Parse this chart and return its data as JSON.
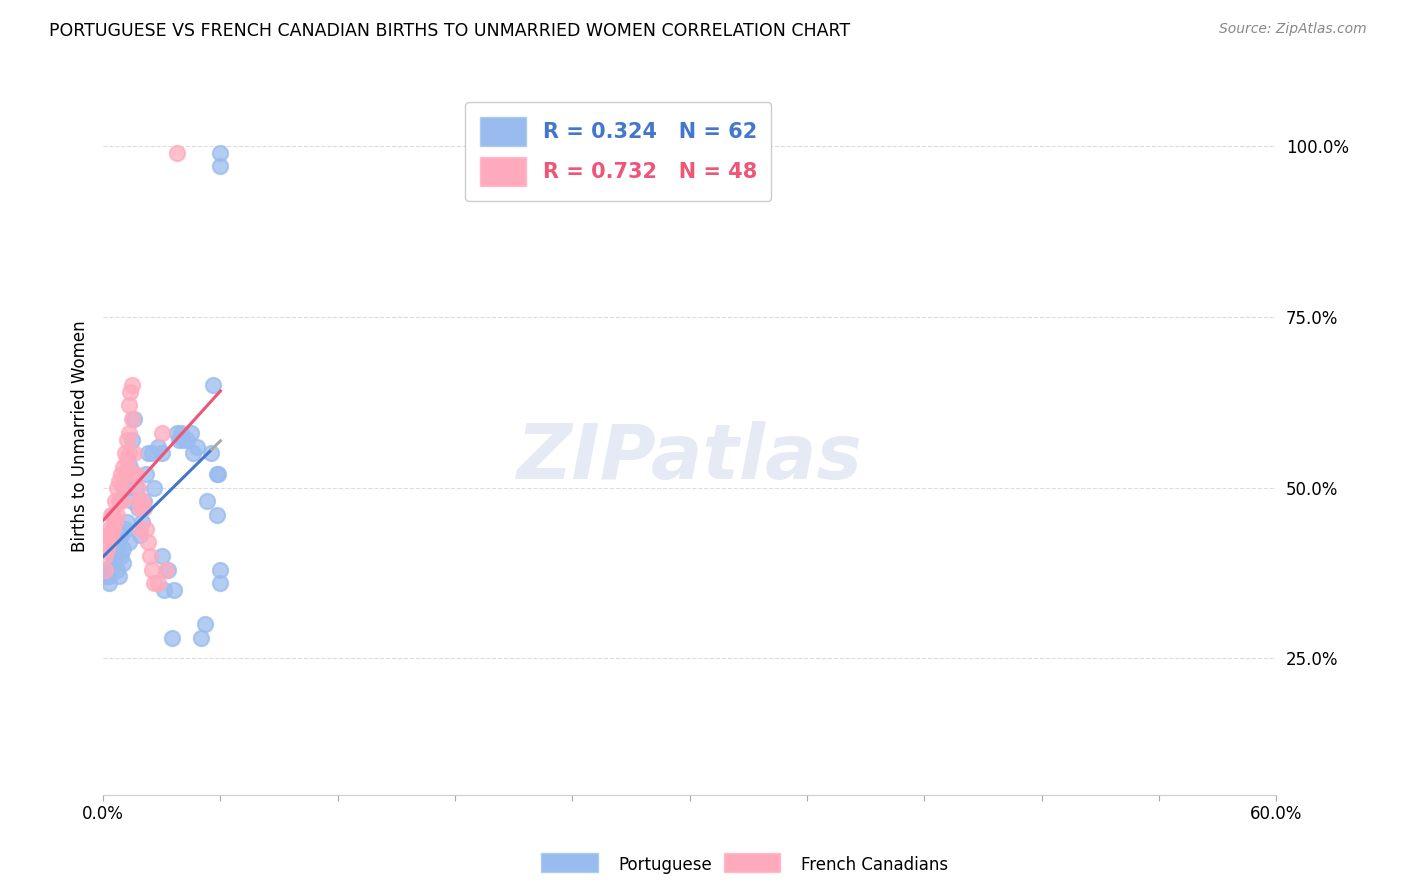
{
  "title": "PORTUGUESE VS FRENCH CANADIAN BIRTHS TO UNMARRIED WOMEN CORRELATION CHART",
  "source": "Source: ZipAtlas.com",
  "ylabel": "Births to Unmarried Women",
  "legend_R1": "R = 0.324",
  "legend_N1": "N = 62",
  "legend_R2": "R = 0.732",
  "legend_N2": "N = 48",
  "legend_label1": "Portuguese",
  "legend_label2": "French Canadians",
  "blue_scatter_color": "#99BBEE",
  "pink_scatter_color": "#FFAABC",
  "blue_line_color": "#4477CC",
  "pink_line_color": "#EE5577",
  "dashed_line_color": "#AAAAAA",
  "watermark": "ZIPatlas",
  "background_color": "#FFFFFF",
  "grid_color": "#DDDDDD",
  "portuguese_x": [
    0.001,
    0.002,
    0.002,
    0.003,
    0.003,
    0.004,
    0.005,
    0.005,
    0.006,
    0.006,
    0.007,
    0.007,
    0.008,
    0.008,
    0.009,
    0.009,
    0.01,
    0.01,
    0.011,
    0.011,
    0.012,
    0.013,
    0.014,
    0.015,
    0.015,
    0.016,
    0.017,
    0.018,
    0.019,
    0.02,
    0.021,
    0.022,
    0.023,
    0.025,
    0.026,
    0.028,
    0.03,
    0.03,
    0.031,
    0.033,
    0.035,
    0.036,
    0.038,
    0.039,
    0.04,
    0.041,
    0.043,
    0.045,
    0.046,
    0.048,
    0.05,
    0.052,
    0.053,
    0.055,
    0.056,
    0.058,
    0.058,
    0.059,
    0.06,
    0.06,
    0.06,
    0.06
  ],
  "portuguese_y": [
    0.37,
    0.38,
    0.37,
    0.36,
    0.37,
    0.38,
    0.39,
    0.4,
    0.41,
    0.42,
    0.4,
    0.38,
    0.37,
    0.42,
    0.4,
    0.43,
    0.39,
    0.41,
    0.44,
    0.5,
    0.45,
    0.42,
    0.53,
    0.57,
    0.48,
    0.6,
    0.5,
    0.47,
    0.43,
    0.45,
    0.48,
    0.52,
    0.55,
    0.55,
    0.5,
    0.56,
    0.55,
    0.4,
    0.35,
    0.38,
    0.28,
    0.35,
    0.58,
    0.57,
    0.58,
    0.57,
    0.57,
    0.58,
    0.55,
    0.56,
    0.28,
    0.3,
    0.48,
    0.55,
    0.65,
    0.52,
    0.46,
    0.52,
    0.36,
    0.38,
    0.97,
    0.99
  ],
  "french_x": [
    0.001,
    0.001,
    0.002,
    0.002,
    0.003,
    0.003,
    0.004,
    0.004,
    0.005,
    0.005,
    0.006,
    0.006,
    0.007,
    0.007,
    0.008,
    0.008,
    0.009,
    0.009,
    0.01,
    0.01,
    0.011,
    0.011,
    0.012,
    0.012,
    0.013,
    0.013,
    0.013,
    0.014,
    0.015,
    0.015,
    0.016,
    0.016,
    0.017,
    0.018,
    0.018,
    0.019,
    0.019,
    0.02,
    0.021,
    0.022,
    0.023,
    0.024,
    0.025,
    0.026,
    0.028,
    0.03,
    0.032,
    0.038
  ],
  "french_y": [
    0.38,
    0.4,
    0.41,
    0.43,
    0.42,
    0.44,
    0.43,
    0.46,
    0.44,
    0.46,
    0.45,
    0.48,
    0.46,
    0.5,
    0.48,
    0.51,
    0.48,
    0.52,
    0.5,
    0.53,
    0.52,
    0.55,
    0.54,
    0.57,
    0.55,
    0.58,
    0.62,
    0.64,
    0.6,
    0.65,
    0.55,
    0.52,
    0.52,
    0.5,
    0.48,
    0.47,
    0.44,
    0.48,
    0.47,
    0.44,
    0.42,
    0.4,
    0.38,
    0.36,
    0.36,
    0.58,
    0.38,
    0.99
  ],
  "xmin": 0.0,
  "xmax": 0.6,
  "ymin": 0.05,
  "ymax": 1.1,
  "yticks": [
    0.25,
    0.5,
    0.75,
    1.0
  ],
  "ytick_labels": [
    "25.0%",
    "50.0%",
    "75.0%",
    "100.0%"
  ],
  "xtick_left_label": "0.0%",
  "xtick_right_label": "60.0%",
  "num_xticks": 11
}
